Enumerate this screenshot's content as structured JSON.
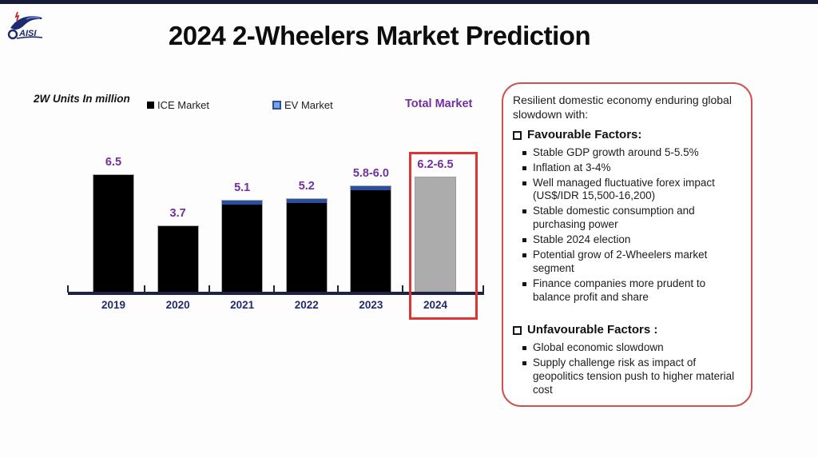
{
  "slide": {
    "title": "2024 2-Wheelers Market Prediction",
    "logo_text": "AISI"
  },
  "chart": {
    "unit_label": "2W Units In million",
    "legend": {
      "ice": "ICE Market",
      "ev": "EV Market",
      "total": "Total Market"
    }
  },
  "chart_data": {
    "type": "bar",
    "title": "2024 2-Wheelers Market Prediction",
    "unit_label": "2W Units In million",
    "categories": [
      "2019",
      "2020",
      "2021",
      "2022",
      "2023",
      "2024"
    ],
    "values": [
      6.5,
      3.7,
      5.1,
      5.2,
      5.9,
      6.35
    ],
    "value_labels": [
      "6.5",
      "3.7",
      "5.1",
      "5.2",
      "5.8-6.0",
      "6.2-6.5"
    ],
    "ev_cap": [
      false,
      false,
      true,
      true,
      true,
      false
    ],
    "forecast_index": 5,
    "highlight_category": "2024",
    "legend": [
      "ICE Market",
      "EV Market",
      "Total Market"
    ],
    "ylim": [
      0,
      7
    ],
    "grid": false,
    "colors": {
      "ice": "#000000",
      "ev": "#2b4fa0",
      "forecast": "#acacac",
      "value_label": "#7030a0",
      "axis": "#1b2447",
      "year_label": "#232a6e",
      "highlight_box": "#e03434",
      "notes_border": "#cf5152"
    }
  },
  "sidebar": {
    "intro": "Resilient domestic economy enduring global slowdown with:",
    "favourable": {
      "header": "Favourable Factors:",
      "items": [
        "Stable GDP growth around 5-5.5%",
        "Inflation at 3-4%",
        "Well managed fluctuative forex impact (US$/IDR 15,500-16,200)",
        "Stable domestic consumption and purchasing power",
        "Stable 2024 election",
        "Potential grow of 2-Wheelers market segment",
        "Finance companies more prudent to balance profit and share"
      ]
    },
    "unfavourable": {
      "header": "Unfavourable Factors :",
      "items": [
        "Global economic slowdown",
        "Supply challenge risk as impact of geopolitics tension push to higher material cost"
      ]
    }
  }
}
